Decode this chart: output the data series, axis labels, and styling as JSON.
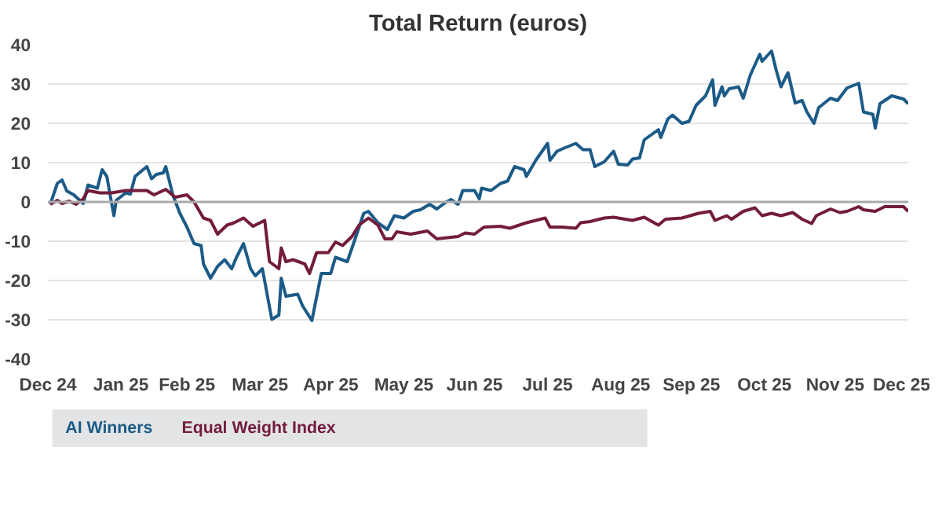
{
  "chart_data": {
    "type": "line",
    "title": "Total Return (euros)",
    "xlim": [
      "2024-12-31",
      "2025-12-31"
    ],
    "xticks": [
      {
        "value": "2024-12-31",
        "label": "Dec 24"
      },
      {
        "value": "2025-01-31",
        "label": "Jan 25"
      },
      {
        "value": "2025-02-28",
        "label": "Feb 25"
      },
      {
        "value": "2025-03-31",
        "label": "Mar 25"
      },
      {
        "value": "2025-04-30",
        "label": "Apr 25"
      },
      {
        "value": "2025-05-31",
        "label": "May 25"
      },
      {
        "value": "2025-06-30",
        "label": "Jun 25"
      },
      {
        "value": "2025-07-31",
        "label": "Jul 25"
      },
      {
        "value": "2025-08-31",
        "label": "Aug 25"
      },
      {
        "value": "2025-09-30",
        "label": "Sep 25"
      },
      {
        "value": "2025-10-31",
        "label": "Oct 25"
      },
      {
        "value": "2025-11-30",
        "label": "Nov 25"
      },
      {
        "value": "2025-12-31",
        "label": "Dec 25"
      }
    ],
    "ylim": [
      -40,
      40
    ],
    "yticks": [
      -40,
      -30,
      -20,
      -10,
      0,
      10,
      20,
      30,
      40
    ],
    "grid": "y",
    "legend": "bottom",
    "line_style": "solid",
    "ref_lines": [
      {
        "axis": "y",
        "value": 0,
        "color": "#aaaaaa"
      }
    ],
    "series": [
      {
        "name": "AI Winners",
        "color": "#1c5b87",
        "x": [
          "2025-01-01",
          "2025-01-04",
          "2025-01-06",
          "2025-01-08",
          "2025-01-11",
          "2025-01-15",
          "2025-01-17",
          "2025-01-21",
          "2025-01-23",
          "2025-01-25",
          "2025-01-28",
          "2025-01-29",
          "2025-02-02",
          "2025-02-04",
          "2025-02-06",
          "2025-02-11",
          "2025-02-13",
          "2025-02-15",
          "2025-02-18",
          "2025-02-19",
          "2025-02-22",
          "2025-02-25",
          "2025-02-28",
          "2025-03-03",
          "2025-03-06",
          "2025-03-07",
          "2025-03-10",
          "2025-03-13",
          "2025-03-16",
          "2025-03-19",
          "2025-03-21",
          "2025-03-24",
          "2025-03-27",
          "2025-03-29",
          "2025-04-01",
          "2025-04-05",
          "2025-04-08",
          "2025-04-09",
          "2025-04-11",
          "2025-04-16",
          "2025-04-18",
          "2025-04-22",
          "2025-04-26",
          "2025-04-30",
          "2025-05-02",
          "2025-05-07",
          "2025-05-10",
          "2025-05-14",
          "2025-05-16",
          "2025-05-20",
          "2025-05-24",
          "2025-05-27",
          "2025-05-31",
          "2025-06-04",
          "2025-06-07",
          "2025-06-11",
          "2025-06-14",
          "2025-06-18",
          "2025-06-20",
          "2025-06-23",
          "2025-06-25",
          "2025-06-30",
          "2025-07-02",
          "2025-07-03",
          "2025-07-07",
          "2025-07-11",
          "2025-07-14",
          "2025-07-17",
          "2025-07-21",
          "2025-07-22",
          "2025-07-26",
          "2025-07-31",
          "2025-08-01",
          "2025-08-04",
          "2025-08-07",
          "2025-08-12",
          "2025-08-15",
          "2025-08-18",
          "2025-08-20",
          "2025-08-24",
          "2025-08-28",
          "2025-08-30",
          "2025-09-03",
          "2025-09-05",
          "2025-09-08",
          "2025-09-10",
          "2025-09-16",
          "2025-09-17",
          "2025-09-20",
          "2025-09-22",
          "2025-09-26",
          "2025-09-29",
          "2025-10-02",
          "2025-10-06",
          "2025-10-09",
          "2025-10-10",
          "2025-10-13",
          "2025-10-14",
          "2025-10-16",
          "2025-10-20",
          "2025-10-22",
          "2025-10-25",
          "2025-10-29",
          "2025-10-30",
          "2025-11-03",
          "2025-11-05",
          "2025-11-07",
          "2025-11-10",
          "2025-11-13",
          "2025-11-16",
          "2025-11-18",
          "2025-11-21",
          "2025-11-23",
          "2025-11-28",
          "2025-12-01",
          "2025-12-05",
          "2025-12-10",
          "2025-12-12",
          "2025-12-16",
          "2025-12-17",
          "2025-12-19",
          "2025-12-24",
          "2025-12-29",
          "2025-12-31"
        ],
        "values": [
          -0.6,
          4.7,
          5.6,
          2.8,
          1.8,
          -0.4,
          4.3,
          3.5,
          8.2,
          6.5,
          -3.5,
          0.4,
          2.3,
          2,
          6.5,
          9,
          5.9,
          7,
          7.4,
          9,
          1.8,
          -2.9,
          -6.4,
          -10.6,
          -11.1,
          -15.8,
          -19.4,
          -16.4,
          -14.7,
          -17,
          -14.1,
          -10.6,
          -17,
          -18.8,
          -17,
          -29.9,
          -28.8,
          -19.4,
          -24,
          -23.5,
          -26.4,
          -30.2,
          -18.2,
          -18.2,
          -14.1,
          -15.2,
          -10,
          -2.9,
          -2.4,
          -5.3,
          -7,
          -3.5,
          -4.1,
          -2.4,
          -2,
          -0.6,
          -1.8,
          0,
          0.6,
          -0.6,
          2.9,
          2.9,
          0.8,
          3.5,
          2.9,
          4.7,
          5.3,
          9,
          8.2,
          6.5,
          10.6,
          14.9,
          10.6,
          12.9,
          13.7,
          14.9,
          13.3,
          13.3,
          9,
          10.2,
          12.9,
          9.6,
          9.4,
          10.9,
          11.2,
          15.8,
          18.4,
          16.4,
          21.1,
          22.1,
          20,
          20.5,
          24.6,
          27,
          31.1,
          24.6,
          29.3,
          27,
          28.8,
          29.3,
          26.4,
          32.3,
          37.6,
          35.8,
          38.4,
          33.5,
          29.3,
          32.9,
          25.2,
          25.8,
          22.9,
          20,
          24,
          26.4,
          25.8,
          29,
          30.2,
          22.9,
          22.3,
          18.8,
          25,
          27,
          26.2,
          25
        ]
      },
      {
        "name": "Equal Weight Index",
        "color": "#731c3c",
        "x": [
          "2025-01-01",
          "2025-01-04",
          "2025-01-06",
          "2025-01-09",
          "2025-01-12",
          "2025-01-15",
          "2025-01-17",
          "2025-01-22",
          "2025-01-27",
          "2025-02-02",
          "2025-02-07",
          "2025-02-11",
          "2025-02-14",
          "2025-02-19",
          "2025-02-23",
          "2025-02-28",
          "2025-03-03",
          "2025-03-07",
          "2025-03-10",
          "2025-03-13",
          "2025-03-17",
          "2025-03-20",
          "2025-03-24",
          "2025-03-28",
          "2025-04-02",
          "2025-04-04",
          "2025-04-08",
          "2025-04-09",
          "2025-04-11",
          "2025-04-14",
          "2025-04-19",
          "2025-04-21",
          "2025-04-24",
          "2025-04-27",
          "2025-04-29",
          "2025-05-02",
          "2025-05-05",
          "2025-05-09",
          "2025-05-12",
          "2025-05-16",
          "2025-05-20",
          "2025-05-23",
          "2025-05-26",
          "2025-05-28",
          "2025-06-03",
          "2025-06-10",
          "2025-06-14",
          "2025-06-23",
          "2025-06-26",
          "2025-06-30",
          "2025-07-04",
          "2025-07-11",
          "2025-07-15",
          "2025-07-22",
          "2025-07-30",
          "2025-08-01",
          "2025-08-06",
          "2025-08-12",
          "2025-08-14",
          "2025-08-18",
          "2025-08-24",
          "2025-08-28",
          "2025-09-02",
          "2025-09-05",
          "2025-09-10",
          "2025-09-16",
          "2025-09-19",
          "2025-09-26",
          "2025-10-03",
          "2025-10-08",
          "2025-10-10",
          "2025-10-15",
          "2025-10-17",
          "2025-10-22",
          "2025-10-27",
          "2025-10-30",
          "2025-11-03",
          "2025-11-07",
          "2025-11-12",
          "2025-11-16",
          "2025-11-20",
          "2025-11-22",
          "2025-11-28",
          "2025-12-02",
          "2025-12-05",
          "2025-12-10",
          "2025-12-12",
          "2025-12-17",
          "2025-12-21",
          "2025-12-29",
          "2025-12-31"
        ],
        "values": [
          -0.6,
          0.4,
          -0.4,
          0.2,
          -0.6,
          0.8,
          2.9,
          2.3,
          2.3,
          2.9,
          2.9,
          2.9,
          1.8,
          3.2,
          1.2,
          1.8,
          0,
          -4.1,
          -4.7,
          -8.2,
          -5.9,
          -5.3,
          -4.1,
          -6.2,
          -4.7,
          -15.2,
          -17,
          -11.7,
          -15.2,
          -14.7,
          -15.8,
          -18.2,
          -12.9,
          -12.9,
          -12.9,
          -10.2,
          -11.1,
          -8.8,
          -5.9,
          -4.1,
          -5.9,
          -9.4,
          -9.4,
          -7.6,
          -8.2,
          -7.4,
          -9.4,
          -8.8,
          -7.9,
          -8.2,
          -6.4,
          -6.2,
          -6.7,
          -5.3,
          -4.1,
          -6.4,
          -6.4,
          -6.7,
          -5.3,
          -5.0,
          -4.1,
          -3.9,
          -4.4,
          -4.7,
          -3.9,
          -5.9,
          -4.4,
          -4.1,
          -2.9,
          -2.4,
          -4.7,
          -3.5,
          -4.4,
          -2.4,
          -1.5,
          -3.5,
          -2.9,
          -3.5,
          -2.7,
          -4.4,
          -5.5,
          -3.5,
          -1.8,
          -2.7,
          -2.4,
          -1.2,
          -2.0,
          -2.4,
          -1.2,
          -1.2,
          -2.4
        ]
      }
    ]
  }
}
